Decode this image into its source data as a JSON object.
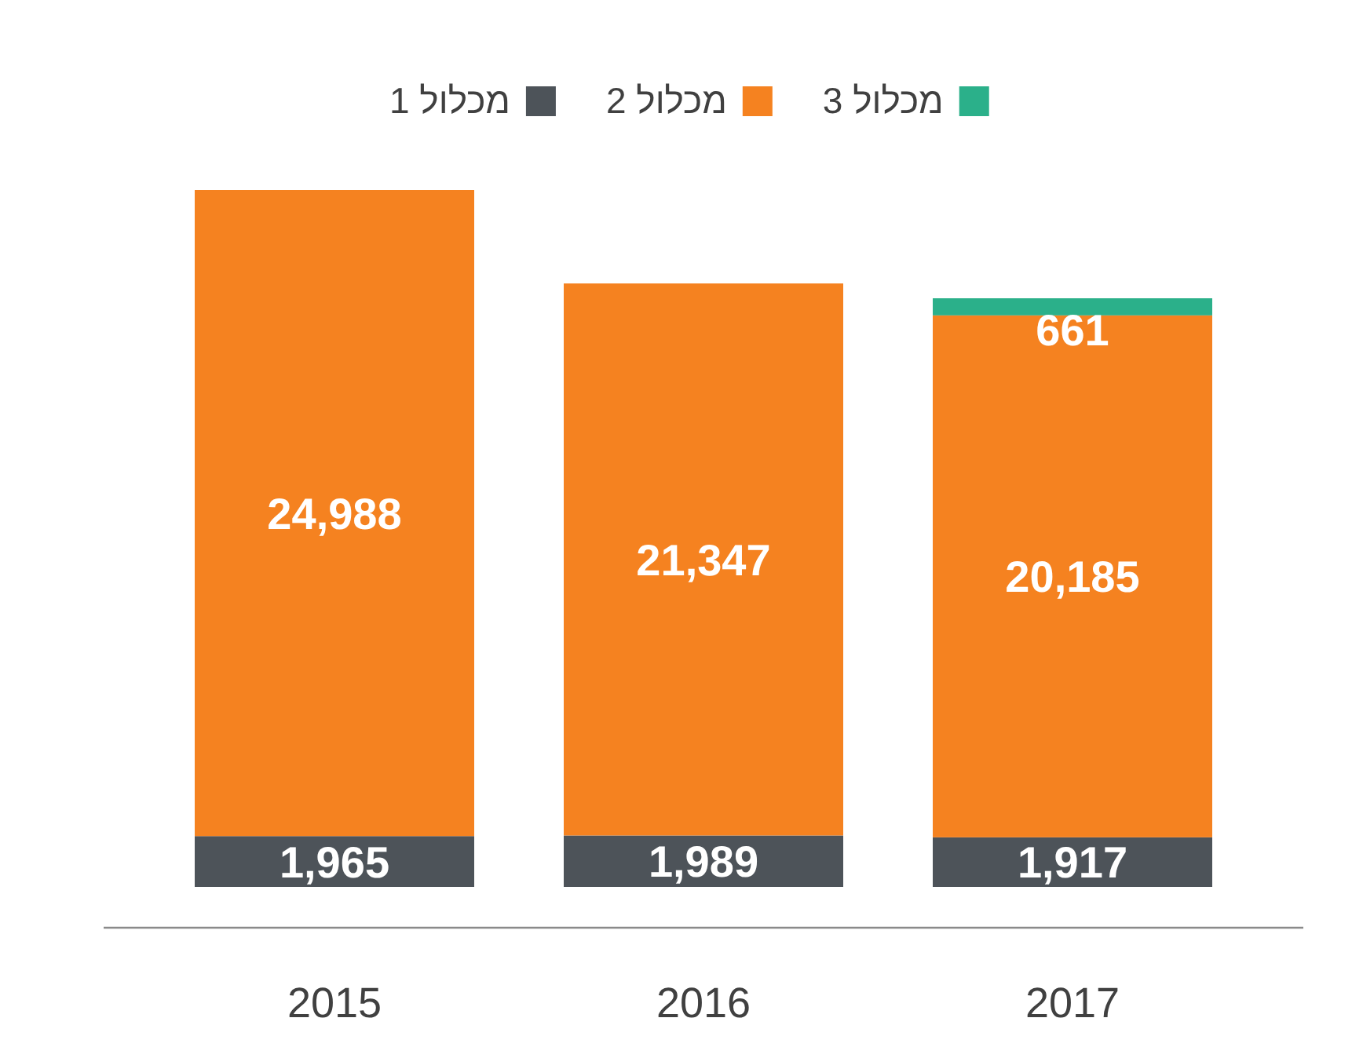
{
  "chart_data": {
    "type": "bar",
    "stacked": true,
    "legend": "top",
    "categories": [
      "2015",
      "2016",
      "2017"
    ],
    "series": [
      {
        "name": "מכלול 1",
        "color": "#4d5359",
        "values": [
          1965,
          1989,
          1917
        ],
        "value_labels": [
          "1,965",
          "1,989",
          "1,917"
        ]
      },
      {
        "name": "מכלול 2",
        "color": "#f58220",
        "values": [
          24988,
          21347,
          20185
        ],
        "value_labels": [
          "24,988",
          "21,347",
          "20,185"
        ]
      },
      {
        "name": "מכלול 3",
        "color": "#2bb08a",
        "values": [
          null,
          null,
          661
        ],
        "value_labels": [
          null,
          null,
          "661"
        ]
      }
    ]
  }
}
